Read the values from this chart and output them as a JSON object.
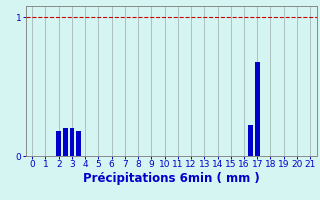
{
  "xlabel": "Précipitations 6min ( mm )",
  "xlim": [
    -0.5,
    21.5
  ],
  "ylim": [
    0,
    1.08
  ],
  "yticks": [
    0,
    1
  ],
  "xtick_labels": [
    "0",
    "1",
    "2",
    "3",
    "4",
    "5",
    "6",
    "7",
    "8",
    "9",
    "10",
    "11",
    "12",
    "13",
    "14",
    "15",
    "16",
    "17",
    "18",
    "19",
    "20",
    "21"
  ],
  "bar_positions": [
    2.0,
    2.5,
    3.0,
    3.5,
    16.5,
    17.0
  ],
  "bar_heights": [
    0.18,
    0.2,
    0.2,
    0.18,
    0.22,
    0.68
  ],
  "bar_width": 0.35,
  "bar_color": "#0000cc",
  "bg_color": "#d4f5f2",
  "grid_color": "#9aadad",
  "hline_color": "#cc0000",
  "hline_y": 1.0,
  "axis_color": "#888888",
  "text_color": "#0000cc",
  "tick_fontsize": 6.5,
  "label_fontsize": 8.5
}
